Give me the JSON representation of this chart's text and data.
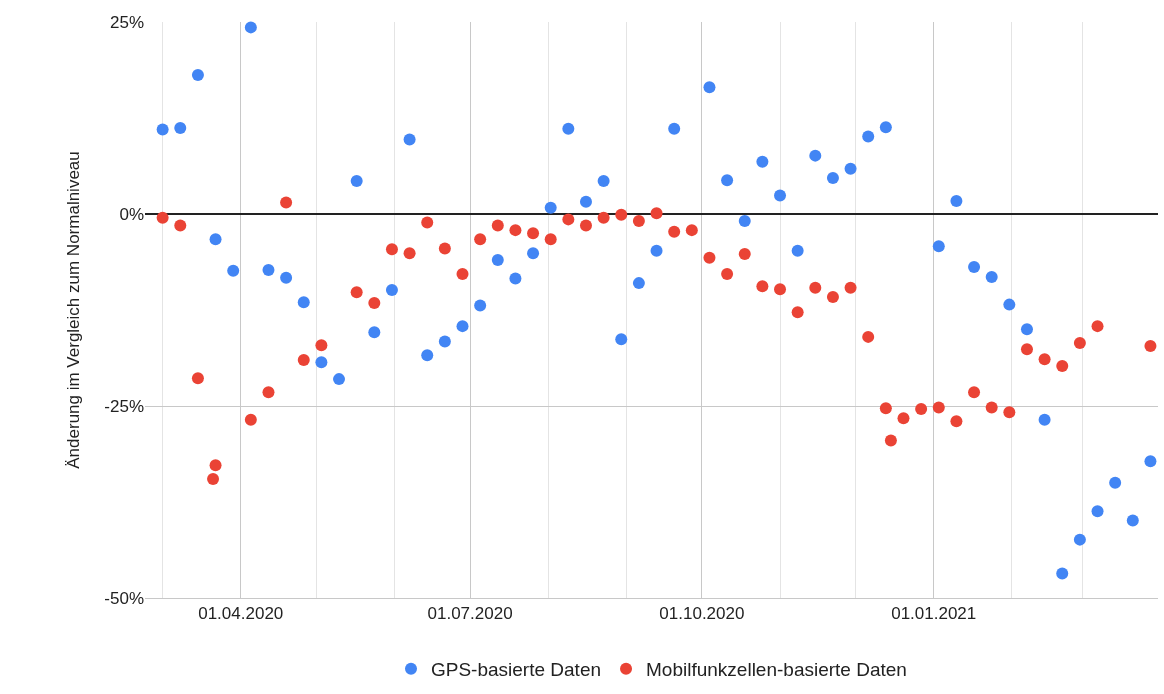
{
  "chart_data": {
    "type": "scatter",
    "ylabel": "Änderung im Vergleich zum Normalniveau",
    "xlim": [
      "2020-02-23",
      "2021-03-31"
    ],
    "xticks": [
      {
        "value": "2020-03-01",
        "label": null
      },
      {
        "value": "2020-04-01",
        "label": "01.04.2020"
      },
      {
        "value": "2020-05-01",
        "label": null
      },
      {
        "value": "2020-06-01",
        "label": null
      },
      {
        "value": "2020-07-01",
        "label": "01.07.2020"
      },
      {
        "value": "2020-08-01",
        "label": null
      },
      {
        "value": "2020-09-01",
        "label": null
      },
      {
        "value": "2020-10-01",
        "label": "01.10.2020"
      },
      {
        "value": "2020-11-01",
        "label": null
      },
      {
        "value": "2020-12-01",
        "label": null
      },
      {
        "value": "2021-01-01",
        "label": "01.01.2021"
      },
      {
        "value": "2021-02-01",
        "label": null
      },
      {
        "value": "2021-03-01",
        "label": null
      }
    ],
    "ylim": [
      -50,
      25
    ],
    "yticks": [
      {
        "value": -50,
        "label": "-50%"
      },
      {
        "value": -25,
        "label": "-25%"
      },
      {
        "value": 0,
        "label": "0%"
      },
      {
        "value": 25,
        "label": "25%"
      }
    ],
    "grid": true,
    "legend": "bottom",
    "marker": "circle",
    "series": [
      {
        "name": "GPS-basierte Daten",
        "color": "#4285f4",
        "x": [
          "2020-03-01",
          "2020-03-08",
          "2020-03-15",
          "2020-03-22",
          "2020-03-29",
          "2020-04-05",
          "2020-04-12",
          "2020-04-19",
          "2020-04-26",
          "2020-05-03",
          "2020-05-10",
          "2020-05-17",
          "2020-05-24",
          "2020-05-31",
          "2020-06-07",
          "2020-06-14",
          "2020-06-21",
          "2020-06-28",
          "2020-07-05",
          "2020-07-12",
          "2020-07-19",
          "2020-07-26",
          "2020-08-02",
          "2020-08-09",
          "2020-08-16",
          "2020-08-23",
          "2020-08-30",
          "2020-09-06",
          "2020-09-13",
          "2020-09-20",
          "2020-10-04",
          "2020-10-11",
          "2020-10-18",
          "2020-10-25",
          "2020-11-01",
          "2020-11-08",
          "2020-11-15",
          "2020-11-22",
          "2020-11-29",
          "2020-12-06",
          "2020-12-13",
          "2021-01-03",
          "2021-01-10",
          "2021-01-17",
          "2021-01-24",
          "2021-01-31",
          "2021-02-07",
          "2021-02-14",
          "2021-02-21",
          "2021-02-28",
          "2021-03-07",
          "2021-03-14",
          "2021-03-21",
          "2021-03-28"
        ],
        "values": [
          11,
          11.2,
          18.1,
          -3.3,
          -7.4,
          24.3,
          -7.3,
          -8.3,
          -11.5,
          -19.3,
          -21.5,
          4.3,
          -15.4,
          -9.9,
          9.7,
          -18.4,
          -16.6,
          -14.6,
          -11.9,
          -6,
          -8.4,
          -5.1,
          0.8,
          11.1,
          1.6,
          4.3,
          -16.3,
          -9,
          -4.8,
          11.1,
          16.5,
          4.4,
          -0.9,
          6.8,
          2.4,
          -4.8,
          7.6,
          4.7,
          5.9,
          10.1,
          11.3,
          -4.2,
          1.7,
          -6.9,
          -8.2,
          -11.8,
          -15,
          -26.8,
          -46.8,
          -42.4,
          -38.7,
          -35,
          -39.9,
          -32.2
        ]
      },
      {
        "name": "Mobilfunkzellen-basierte Daten",
        "color": "#ea4335",
        "x": [
          "2020-03-01",
          "2020-03-08",
          "2020-03-15",
          "2020-03-21",
          "2020-03-22",
          "2020-04-05",
          "2020-04-12",
          "2020-04-19",
          "2020-04-26",
          "2020-05-03",
          "2020-05-17",
          "2020-05-24",
          "2020-05-31",
          "2020-06-07",
          "2020-06-14",
          "2020-06-21",
          "2020-06-28",
          "2020-07-05",
          "2020-07-12",
          "2020-07-19",
          "2020-07-26",
          "2020-08-02",
          "2020-08-09",
          "2020-08-16",
          "2020-08-23",
          "2020-08-30",
          "2020-09-06",
          "2020-09-13",
          "2020-09-20",
          "2020-09-27",
          "2020-10-04",
          "2020-10-11",
          "2020-10-18",
          "2020-10-25",
          "2020-11-01",
          "2020-11-08",
          "2020-11-15",
          "2020-11-22",
          "2020-11-29",
          "2020-12-06",
          "2020-12-13",
          "2020-12-15",
          "2020-12-20",
          "2020-12-27",
          "2021-01-03",
          "2021-01-10",
          "2021-01-17",
          "2021-01-24",
          "2021-01-31",
          "2021-02-07",
          "2021-02-14",
          "2021-02-21",
          "2021-02-28",
          "2021-03-07",
          "2021-03-28"
        ],
        "values": [
          -0.5,
          -1.5,
          -21.4,
          -34.5,
          -32.7,
          -26.8,
          -23.2,
          1.5,
          -19,
          -17.1,
          -10.2,
          -11.6,
          -4.6,
          -5.1,
          -1.1,
          -4.5,
          -7.8,
          -3.3,
          -1.5,
          -2.1,
          -2.5,
          -3.3,
          -0.7,
          -1.5,
          -0.5,
          -0.1,
          -0.9,
          0.1,
          -2.3,
          -2.1,
          -5.7,
          -7.8,
          -5.2,
          -9.4,
          -9.8,
          -12.8,
          -9.6,
          -10.8,
          -9.6,
          -16,
          -25.3,
          -29.5,
          -26.6,
          -25.4,
          -25.2,
          -27,
          -23.2,
          -25.2,
          -25.8,
          -17.6,
          -18.9,
          -19.8,
          -16.8,
          -14.6,
          -17.2
        ]
      }
    ]
  }
}
